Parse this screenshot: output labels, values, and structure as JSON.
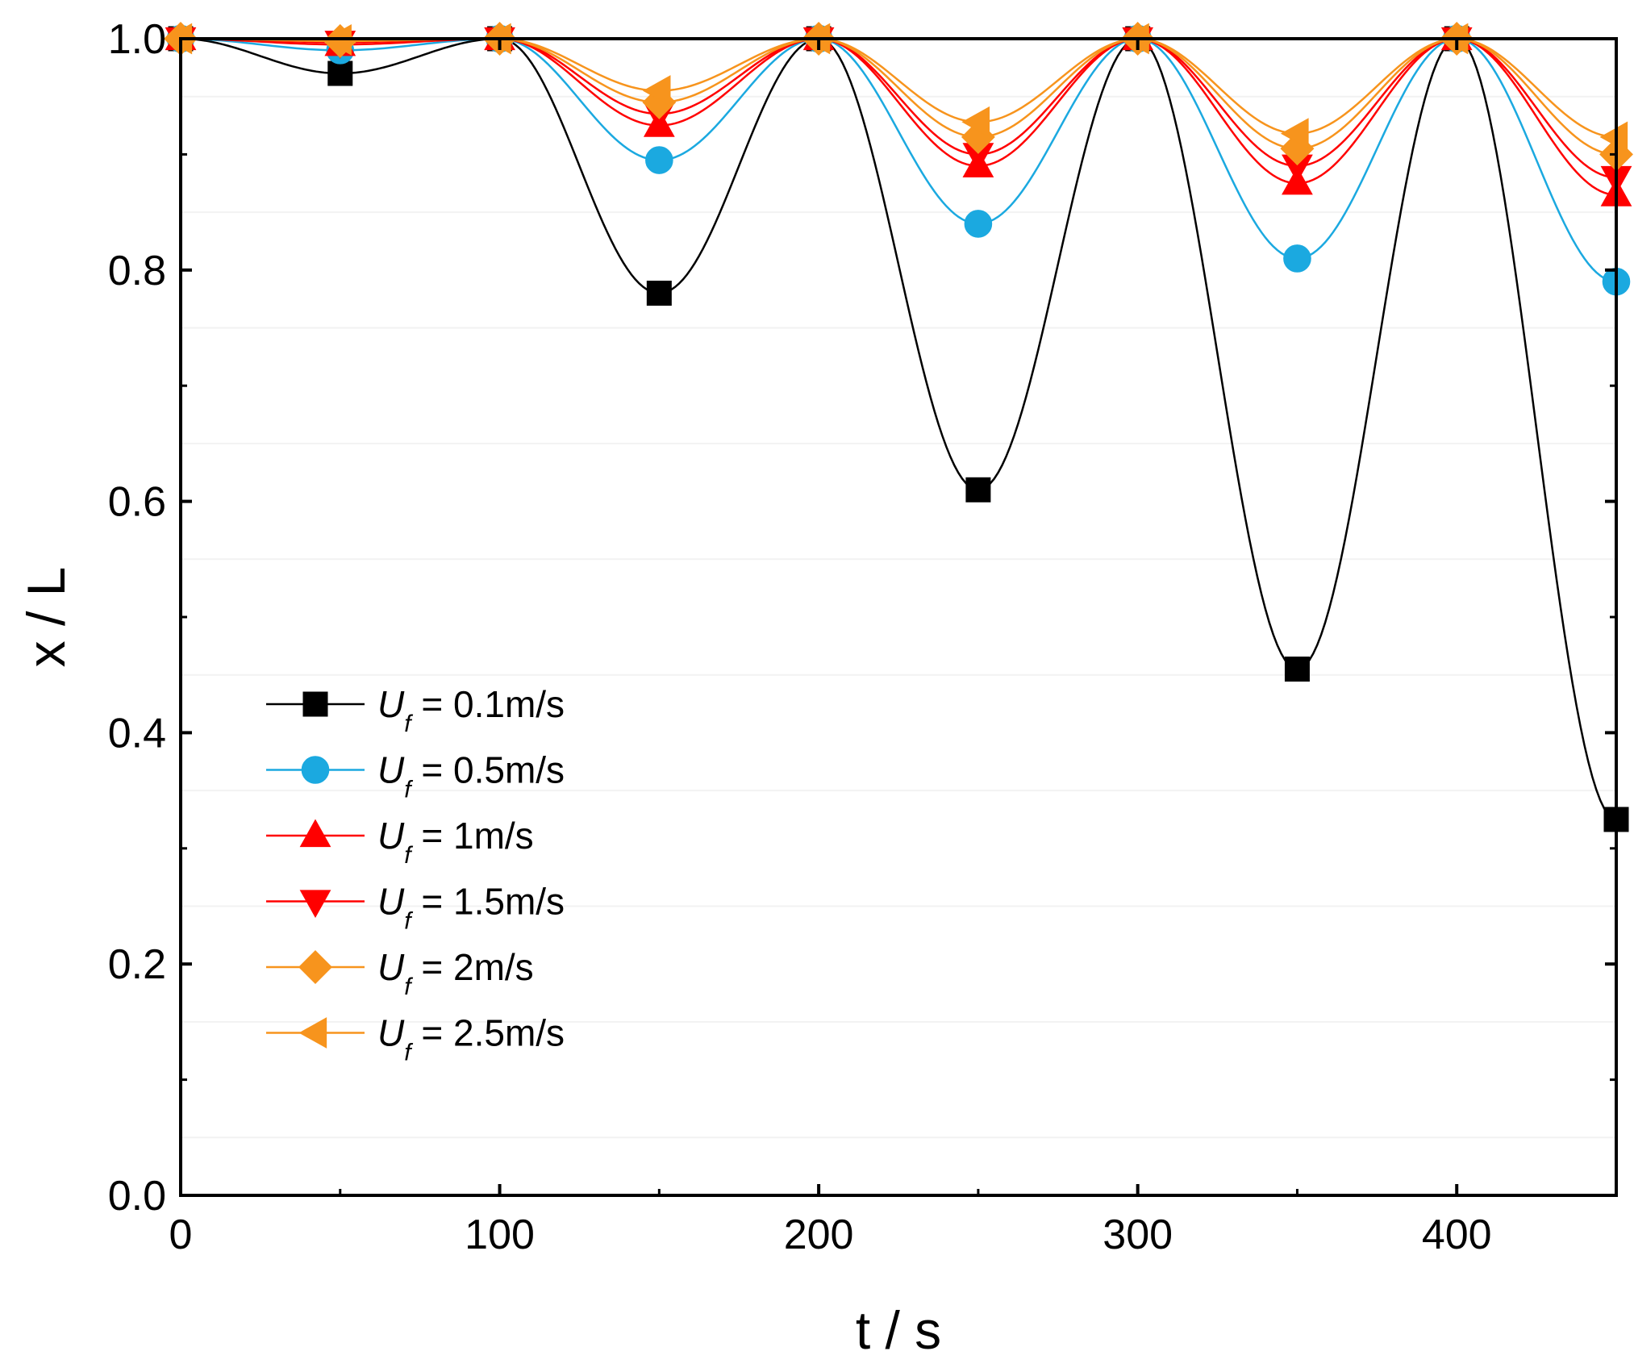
{
  "chart_data": {
    "type": "line",
    "title": "",
    "xlabel": "t / s",
    "ylabel": "x / L",
    "xlim": [
      0,
      450
    ],
    "ylim": [
      0.0,
      1.0
    ],
    "xticks": [
      0,
      100,
      200,
      300,
      400
    ],
    "yticks": [
      0.0,
      0.2,
      0.4,
      0.6,
      0.8,
      1.0
    ],
    "xtick_labels": [
      "0",
      "100",
      "200",
      "300",
      "400"
    ],
    "ytick_labels": [
      "0.0",
      "0.2",
      "0.4",
      "0.6",
      "0.8",
      "1.0"
    ],
    "x": [
      0,
      50,
      100,
      150,
      200,
      250,
      300,
      350,
      400,
      450
    ],
    "legend_position": "bottom-left",
    "series": [
      {
        "name": "U_f = 0.1m/s",
        "legend_prefix": "U",
        "legend_sub": "f",
        "legend_suffix": " = 0.1m/s",
        "color": "#000000",
        "marker": "square",
        "values": [
          1.0,
          0.97,
          1.0,
          0.78,
          1.0,
          0.61,
          1.0,
          0.455,
          1.0,
          0.325
        ]
      },
      {
        "name": "U_f = 0.5m/s",
        "legend_prefix": "U",
        "legend_sub": "f",
        "legend_suffix": " = 0.5m/s",
        "color": "#1BA9E0",
        "marker": "circle",
        "values": [
          1.0,
          0.99,
          1.0,
          0.895,
          1.0,
          0.84,
          1.0,
          0.81,
          1.0,
          0.79
        ]
      },
      {
        "name": "U_f = 1m/s",
        "legend_prefix": "U",
        "legend_sub": "f",
        "legend_suffix": " = 1m/s",
        "color": "#FF0000",
        "marker": "triangle-up",
        "values": [
          1.0,
          0.995,
          1.0,
          0.925,
          1.0,
          0.89,
          1.0,
          0.875,
          1.0,
          0.865
        ]
      },
      {
        "name": "U_f = 1.5m/s",
        "legend_prefix": "U",
        "legend_sub": "f",
        "legend_suffix": " = 1.5m/s",
        "color": "#FF0000",
        "marker": "triangle-down",
        "values": [
          1.0,
          0.997,
          1.0,
          0.935,
          1.0,
          0.9,
          1.0,
          0.89,
          1.0,
          0.88
        ]
      },
      {
        "name": "U_f = 2m/s",
        "legend_prefix": "U",
        "legend_sub": "f",
        "legend_suffix": " = 2m/s",
        "color": "#F7941D",
        "marker": "diamond",
        "values": [
          1.0,
          0.998,
          1.0,
          0.945,
          1.0,
          0.915,
          1.0,
          0.905,
          1.0,
          0.9
        ]
      },
      {
        "name": "U_f = 2.5m/s",
        "legend_prefix": "U",
        "legend_sub": "f",
        "legend_suffix": " = 2.5m/s",
        "color": "#F7941D",
        "marker": "triangle-left",
        "values": [
          1.0,
          0.999,
          1.0,
          0.955,
          1.0,
          0.928,
          1.0,
          0.918,
          1.0,
          0.915
        ]
      }
    ]
  }
}
